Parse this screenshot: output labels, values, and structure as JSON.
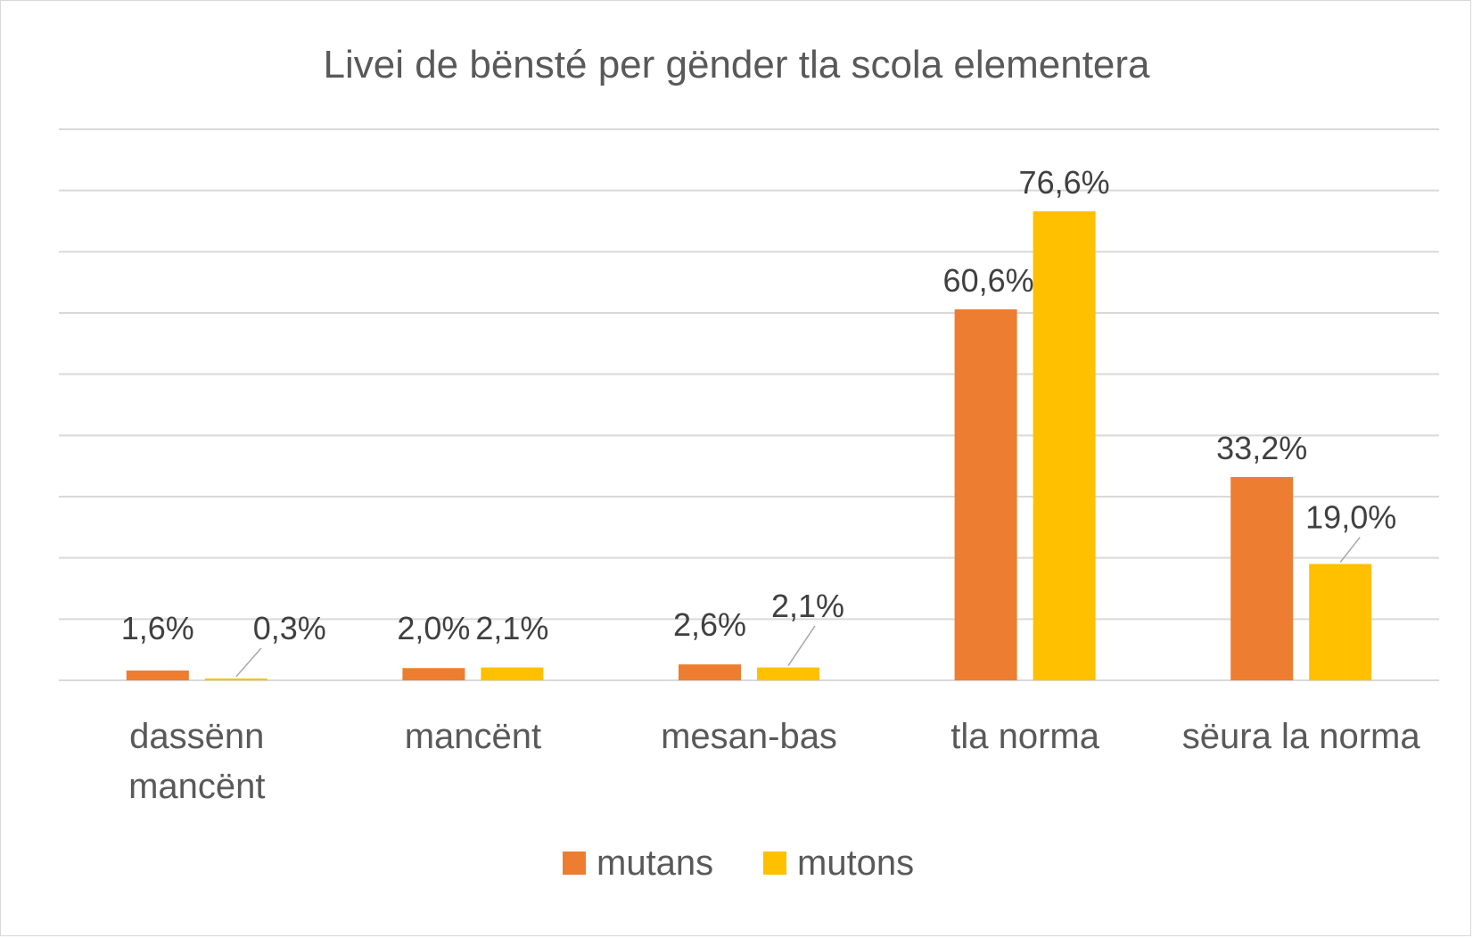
{
  "chart_data": {
    "type": "bar",
    "title": "Livei de bënsté per gënder tla scola elementera",
    "categories": [
      [
        "dassënn",
        "mancënt"
      ],
      [
        "mancënt"
      ],
      [
        "mesan-bas"
      ],
      [
        "tla norma"
      ],
      [
        "sëura la norma"
      ]
    ],
    "series": [
      {
        "name": "mutans",
        "color": "#ED7D31",
        "values": [
          1.6,
          2.0,
          2.6,
          60.6,
          33.2
        ],
        "labels": [
          "1,6%",
          "2,0%",
          "2,6%",
          "60,6%",
          "33,2%"
        ]
      },
      {
        "name": "mutons",
        "color": "#FFC000",
        "values": [
          0.3,
          2.1,
          2.1,
          76.6,
          19.0
        ],
        "labels": [
          "0,3%",
          "2,1%",
          "2,1%",
          "76,6%",
          "19,0%"
        ]
      }
    ],
    "ylim": [
      0,
      90
    ],
    "gridlines": true,
    "xlabel": "",
    "ylabel": "",
    "legend_position": "bottom"
  }
}
